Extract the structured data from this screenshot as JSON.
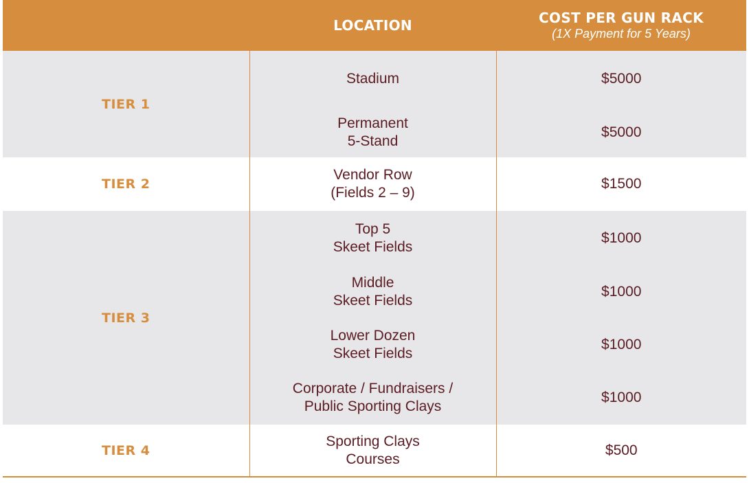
{
  "header": {
    "tier_label": "",
    "location_label": "LOCATION",
    "cost_label": "COST PER GUN RACK",
    "cost_sublabel": "(1X Payment for 5 Years)"
  },
  "tiers": [
    {
      "name": "TIER 1",
      "rows": [
        {
          "location": [
            "Stadium"
          ],
          "cost": "$5000"
        },
        {
          "location": [
            "Permanent",
            "5-Stand"
          ],
          "cost": "$5000"
        }
      ]
    },
    {
      "name": "TIER 2",
      "rows": [
        {
          "location": [
            "Vendor Row",
            "(Fields 2 – 9)"
          ],
          "cost": "$1500"
        }
      ]
    },
    {
      "name": "TIER 3",
      "rows": [
        {
          "location": [
            "Top 5",
            "Skeet Fields"
          ],
          "cost": "$1000"
        },
        {
          "location": [
            "Middle",
            "Skeet Fields"
          ],
          "cost": "$1000"
        },
        {
          "location": [
            "Lower Dozen",
            "Skeet Fields"
          ],
          "cost": "$1000"
        },
        {
          "location": [
            "Corporate / Fundraisers /",
            "Public Sporting Clays"
          ],
          "cost": "$1000"
        }
      ]
    },
    {
      "name": "TIER 4",
      "rows": [
        {
          "location": [
            "Sporting Clays",
            "Courses"
          ],
          "cost": "$500"
        }
      ]
    }
  ],
  "colors": {
    "accent": "#d68e3e",
    "text": "#5a1b22",
    "band": "#e7e7e9"
  }
}
